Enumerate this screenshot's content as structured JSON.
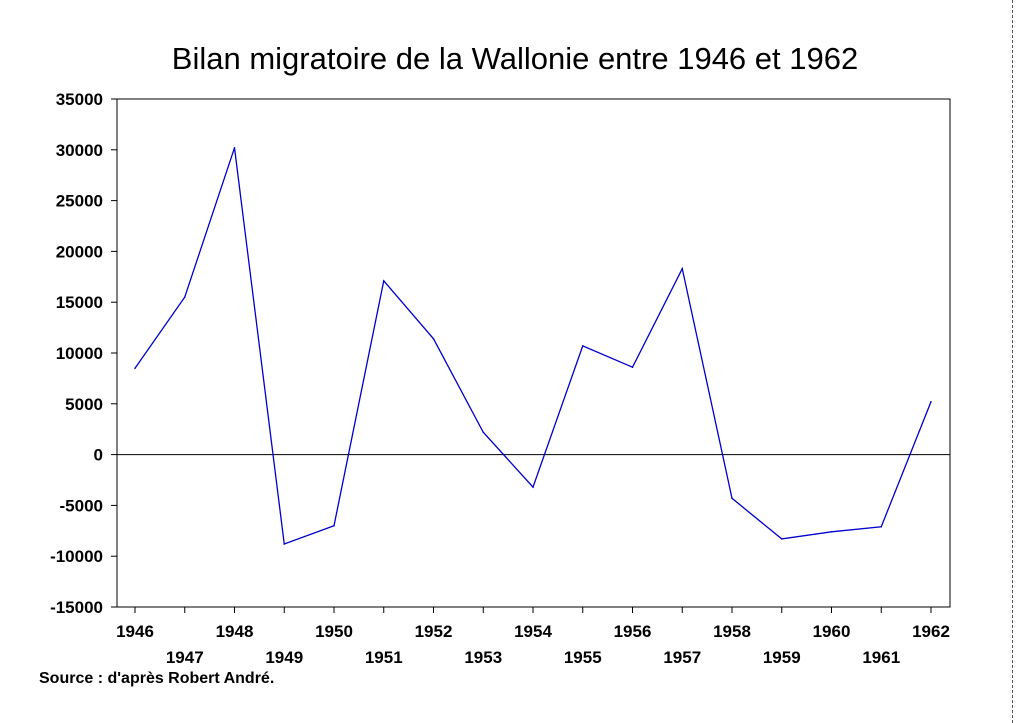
{
  "colors": {
    "line": "#0000cc",
    "axis": "#000000"
  },
  "source": "Source : d'après Robert André.",
  "chart_data": {
    "type": "line",
    "title": "Bilan migratoire de la Wallonie entre 1946 et 1962",
    "xlabel": "",
    "ylabel": "",
    "x": [
      1946,
      1947,
      1948,
      1949,
      1950,
      1951,
      1952,
      1953,
      1954,
      1955,
      1956,
      1957,
      1958,
      1959,
      1960,
      1961,
      1962
    ],
    "series": [
      {
        "values": [
          8500,
          15500,
          30200,
          -8800,
          -7000,
          17100,
          11400,
          2200,
          -3200,
          10700,
          8600,
          18300,
          -4300,
          -8300,
          -7600,
          -7100,
          5200
        ]
      }
    ],
    "ylim": [
      -15000,
      35000
    ],
    "yticks": [
      35000,
      30000,
      25000,
      20000,
      15000,
      10000,
      5000,
      0,
      -5000,
      -10000,
      -15000
    ],
    "xtick_labels_row1": [
      "1946",
      "1948",
      "1950",
      "1952",
      "1954",
      "1956",
      "1958",
      "1960",
      "1962"
    ],
    "xtick_labels_row2": [
      "1947",
      "1949",
      "1951",
      "1953",
      "1955",
      "1957",
      "1959",
      "1961"
    ],
    "zero_line": true,
    "grid": false,
    "legend": "none"
  }
}
